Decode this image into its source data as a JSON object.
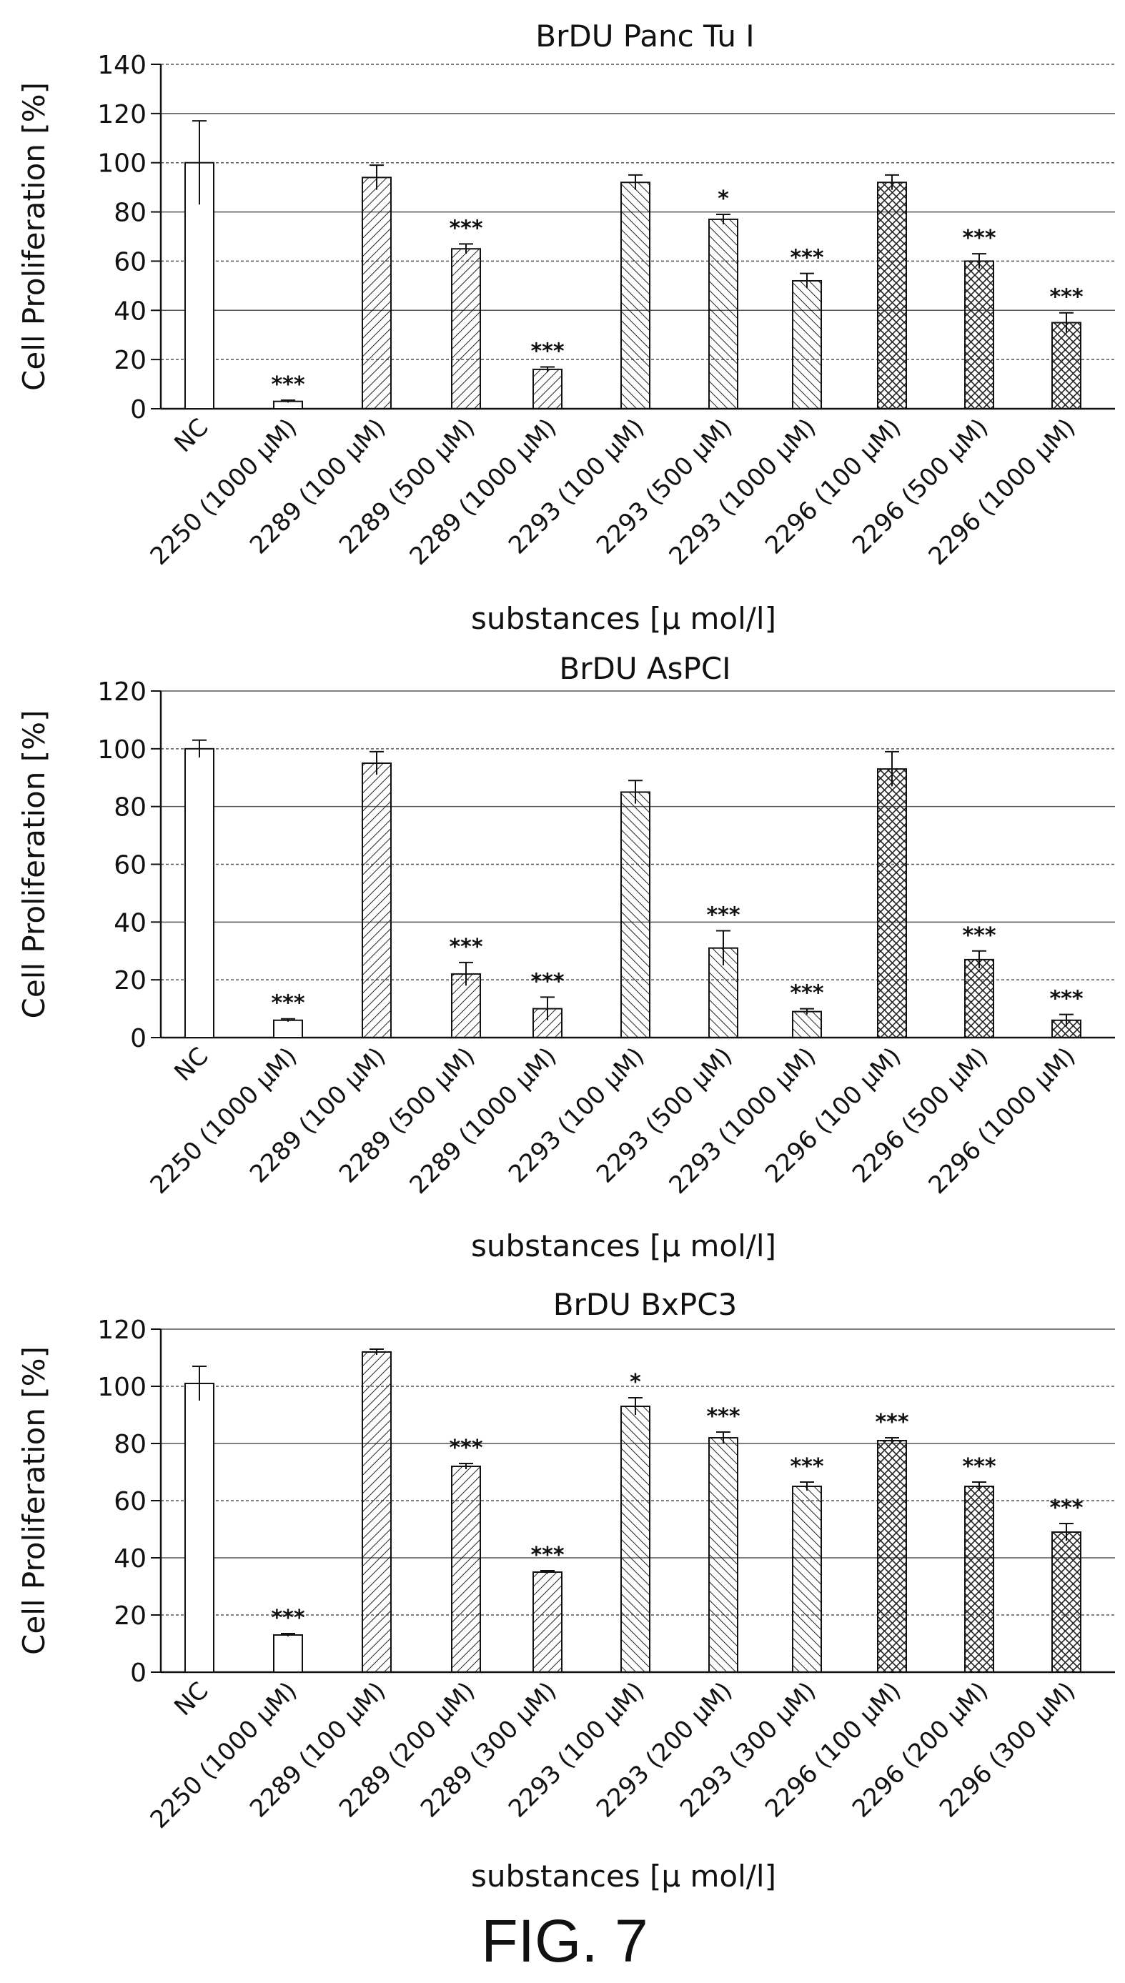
{
  "figure_label": "FIG. 7",
  "chart_data": [
    {
      "type": "bar",
      "title": "BrDU  Panc  Tu  I",
      "xlabel": "substances  [μ mol/l]",
      "ylabel": "Cell  Proliferation  [%]",
      "ylim": [
        0,
        140
      ],
      "yticks": [
        "0",
        "20",
        "40",
        "60",
        "80",
        "100",
        "120",
        "140"
      ],
      "grid": true,
      "categories": [
        "NC",
        "2250 (1000 μM)",
        "2289 (100 μM)",
        "2289 (500 μM)",
        "2289 (1000 μM)",
        "2293 (100 μM)",
        "2293 (500 μM)",
        "2293 (1000 μM)",
        "2296 (100 μM)",
        "2296 (500 μM)",
        "2296 (1000 μM)"
      ],
      "values": [
        100,
        3,
        94,
        65,
        16,
        92,
        77,
        52,
        92,
        60,
        35
      ],
      "errors": [
        17,
        0.5,
        5,
        2,
        1,
        3,
        2,
        3,
        3,
        3,
        4
      ],
      "significance": [
        "",
        "***",
        "",
        "***",
        "***",
        "",
        "*",
        "***",
        "",
        "***",
        "***"
      ]
    },
    {
      "type": "bar",
      "title": "BrDU  AsPCI",
      "xlabel": "substances  [μ mol/l]",
      "ylabel": "Cell  Proliferation  [%]",
      "ylim": [
        0,
        120
      ],
      "yticks": [
        "0",
        "20",
        "40",
        "60",
        "80",
        "100",
        "120"
      ],
      "grid": true,
      "categories": [
        "NC",
        "2250 (1000 μM)",
        "2289 (100 μM)",
        "2289 (500 μM)",
        "2289 (1000 μM)",
        "2293 (100 μM)",
        "2293 (500 μM)",
        "2293 (1000 μM)",
        "2296 (100 μM)",
        "2296 (500 μM)",
        "2296 (1000 μM)"
      ],
      "values": [
        100,
        6,
        95,
        22,
        10,
        85,
        31,
        9,
        93,
        27,
        6
      ],
      "errors": [
        3,
        0.5,
        4,
        4,
        4,
        4,
        6,
        1,
        6,
        3,
        2
      ],
      "significance": [
        "",
        "***",
        "",
        "***",
        "***",
        "",
        "***",
        "***",
        "",
        "***",
        "***"
      ]
    },
    {
      "type": "bar",
      "title": "BrDU  BxPC3",
      "xlabel": "substances  [μ mol/l]",
      "ylabel": "Cell  Proliferation  [%]",
      "ylim": [
        0,
        120
      ],
      "yticks": [
        "0",
        "20",
        "40",
        "60",
        "80",
        "100",
        "120"
      ],
      "grid": true,
      "categories": [
        "NC",
        "2250 (1000 μM)",
        "2289 (100 μM)",
        "2289 (200 μM)",
        "2289 (300 μM)",
        "2293 (100 μM)",
        "2293 (200 μM)",
        "2293 (300 μM)",
        "2296 (100 μM)",
        "2296 (200 μM)",
        "2296 (300 μM)"
      ],
      "values": [
        101,
        13,
        112,
        72,
        35,
        93,
        82,
        65,
        81,
        65,
        49
      ],
      "errors": [
        6,
        0.5,
        1,
        1,
        0.5,
        3,
        2,
        1.5,
        1,
        1.5,
        3
      ],
      "significance": [
        "",
        "***",
        "",
        "***",
        "***",
        "*",
        "***",
        "***",
        "***",
        "***",
        "***"
      ]
    }
  ]
}
